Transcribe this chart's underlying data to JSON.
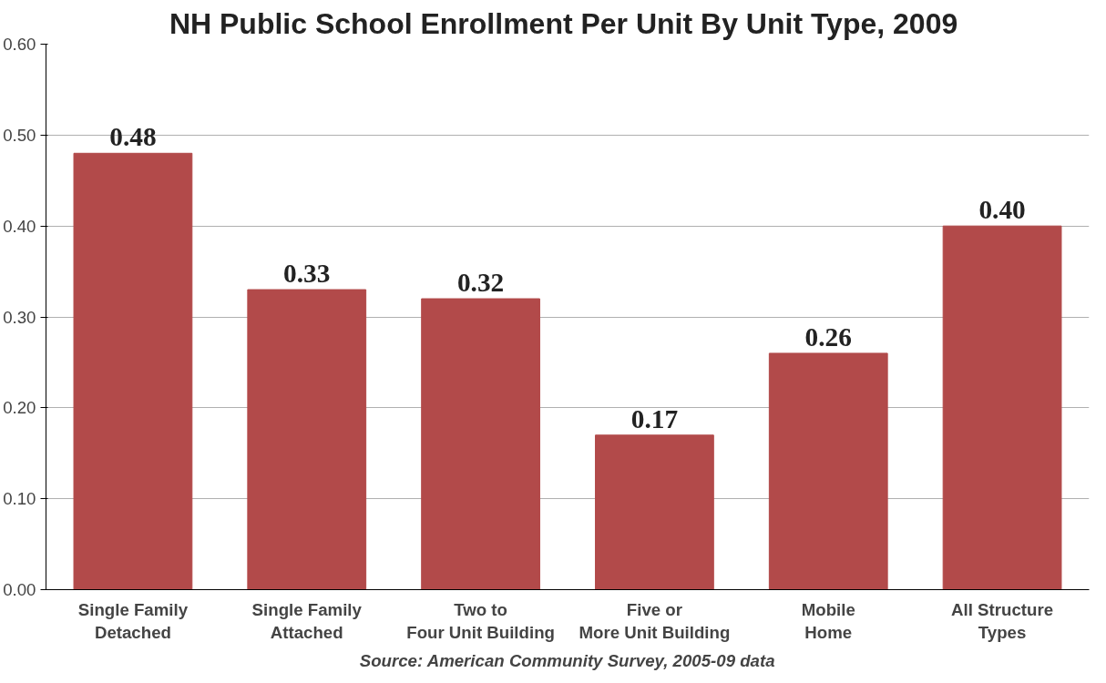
{
  "chart_data": {
    "type": "bar",
    "title": "NH Public School  Enrollment Per Unit By Unit Type, 2009",
    "categories": [
      "Single Family Detached",
      "Single Family Attached",
      "Two to Four Unit Building",
      "Five or More Unit Building",
      "Mobile Home",
      "All Structure Types"
    ],
    "values": [
      0.48,
      0.33,
      0.32,
      0.17,
      0.26,
      0.4
    ],
    "color": "#b24a4a",
    "ylim": [
      0,
      0.6
    ],
    "yticks": [
      {
        "value": 0,
        "label": "0.00"
      },
      {
        "value": 0.1,
        "label": "0.10"
      },
      {
        "value": 0.2,
        "label": "0.20"
      },
      {
        "value": 0.3,
        "label": "0.30"
      },
      {
        "value": 0.4,
        "label": "0.40"
      },
      {
        "value": 0.5,
        "label": "0.50"
      },
      {
        "value": 0.6,
        "label": "0.60"
      }
    ],
    "value_labels": [
      "0.48",
      "0.33",
      "0.32",
      "0.17",
      "0.26",
      "0.40"
    ],
    "grid": "y",
    "annotations": [
      "Source: American Community Survey, 2005-09 data"
    ]
  }
}
